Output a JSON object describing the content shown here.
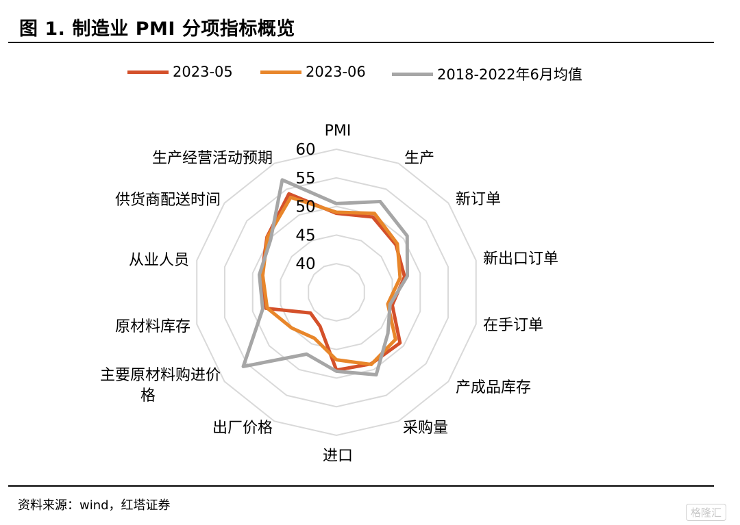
{
  "title": "图 1. 制造业 PMI 分项指标概览",
  "source": "资料来源：wind，红塔证券",
  "watermark": "格隆汇",
  "chart_data": {
    "type": "radar",
    "axes": [
      "PMI",
      "生产",
      "新订单",
      "新出口订单",
      "在手订单",
      "产成品库存",
      "采购量",
      "进口",
      "出厂价格",
      "主要原材料购进价格",
      "原材料库存",
      "从业人员",
      "供货商配送时间",
      "生产经营活动预期"
    ],
    "scale_ticks": [
      "40",
      "45",
      "50",
      "55",
      "60"
    ],
    "range": [
      35,
      60
    ],
    "grid": true,
    "legend_position": "top",
    "series": [
      {
        "name": "2023-05",
        "color": "#D4502A",
        "values": [
          48.8,
          49.6,
          48.3,
          47.2,
          45.0,
          49.2,
          48.9,
          48.6,
          41.6,
          40.8,
          47.6,
          48.4,
          50.5,
          54.1
        ]
      },
      {
        "name": "2023-06",
        "color": "#E8862A",
        "values": [
          49.0,
          50.3,
          48.6,
          46.4,
          44.2,
          48.2,
          49.0,
          46.8,
          43.9,
          45.0,
          47.4,
          48.2,
          50.4,
          53.4
        ]
      },
      {
        "name": "2018-2022年6月均值",
        "color": "#A6A6A6",
        "values": [
          50.5,
          52.6,
          50.8,
          47.7,
          44.6,
          46.5,
          51.0,
          48.8,
          47.0,
          55.8,
          48.2,
          48.8,
          49.7,
          56.8
        ]
      }
    ]
  }
}
